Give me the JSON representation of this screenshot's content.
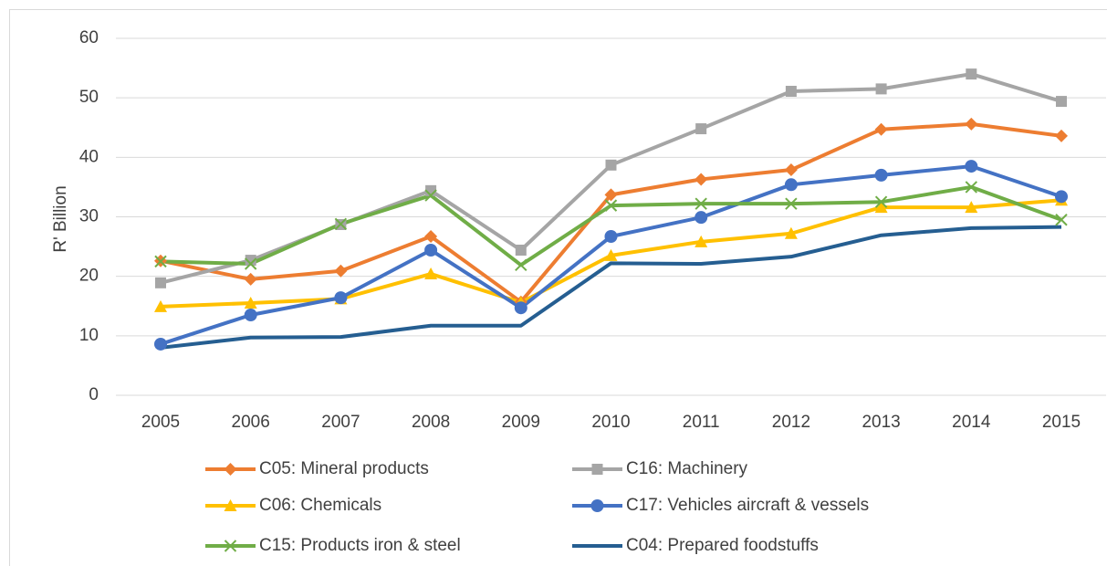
{
  "chart_data": {
    "type": "line",
    "y_label": "R' Billion",
    "x": [
      2005,
      2006,
      2007,
      2008,
      2009,
      2010,
      2011,
      2012,
      2013,
      2014,
      2015
    ],
    "ylim": [
      0,
      60
    ],
    "yticks": [
      0,
      10,
      20,
      30,
      40,
      50,
      60
    ],
    "grid": true,
    "series": [
      {
        "name": "C05: Mineral products",
        "color": "#ED7D31",
        "marker": "diamond",
        "values": [
          22.6,
          19.5,
          20.9,
          26.7,
          15.7,
          33.7,
          36.3,
          37.9,
          44.7,
          45.6,
          43.6
        ]
      },
      {
        "name": "C16: Machinery",
        "color": "#A5A5A5",
        "marker": "square",
        "values": [
          18.9,
          22.7,
          28.7,
          34.4,
          24.4,
          38.7,
          44.8,
          51.1,
          51.5,
          54.0,
          49.4
        ]
      },
      {
        "name": "C06: Chemicals",
        "color": "#FFC000",
        "marker": "triangle",
        "values": [
          14.9,
          15.5,
          16.2,
          20.4,
          15.6,
          23.5,
          25.8,
          27.2,
          31.6,
          31.6,
          32.8
        ]
      },
      {
        "name": "C17: Vehicles aircraft & vessels",
        "color": "#4472C4",
        "marker": "circle",
        "values": [
          8.6,
          13.5,
          16.4,
          24.4,
          14.7,
          26.7,
          29.9,
          35.4,
          37.0,
          38.5,
          33.4
        ]
      },
      {
        "name": "C15: Products iron & steel",
        "color": "#70AD47",
        "marker": "x",
        "values": [
          22.5,
          22.1,
          28.8,
          33.6,
          21.9,
          31.9,
          32.2,
          32.2,
          32.5,
          35.0,
          29.5
        ]
      },
      {
        "name": "C04: Prepared foodstuffs",
        "color": "#255E91",
        "values": [
          8.0,
          9.7,
          9.8,
          11.7,
          11.7,
          22.2,
          22.1,
          23.3,
          26.9,
          28.1,
          28.3
        ]
      }
    ]
  }
}
